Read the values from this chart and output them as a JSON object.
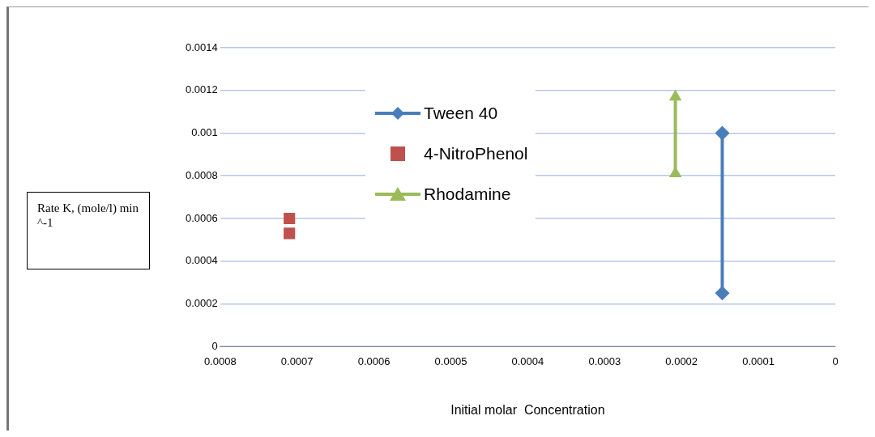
{
  "chart_data": {
    "type": "line",
    "xlabel": "Initial molar  Concentration",
    "ylabel": "Rate K, (mole/l)   min ^-1",
    "xlim": [
      0.0008,
      0
    ],
    "xticks": [
      0.0008,
      0.0007,
      0.0006,
      0.0005,
      0.0004,
      0.0003,
      0.0002,
      0.0001,
      0
    ],
    "ylim": [
      0,
      0.0014
    ],
    "yticks": [
      0,
      0.0002,
      0.0004,
      0.0006,
      0.0008,
      0.001,
      0.0012,
      0.0014
    ],
    "grid": "y",
    "legend": "top",
    "line_style": "solid",
    "series": [
      {
        "name": "Tween 40",
        "color": "#4a7ebb",
        "marker": "diamond",
        "x": [
          0.000147,
          0.000147
        ],
        "values": [
          0.001,
          0.00025
        ]
      },
      {
        "name": "4-NitroPhenol",
        "type": "scatter",
        "color": "#c0504d",
        "marker": "square",
        "x": [
          0.00071,
          0.00071
        ],
        "values": [
          0.0006,
          0.00053
        ]
      },
      {
        "name": "Rhodamine",
        "color": "#9bbb59",
        "marker": "triangle",
        "x": [
          0.000208,
          0.000208
        ],
        "values": [
          0.00117,
          0.00081
        ]
      }
    ]
  }
}
